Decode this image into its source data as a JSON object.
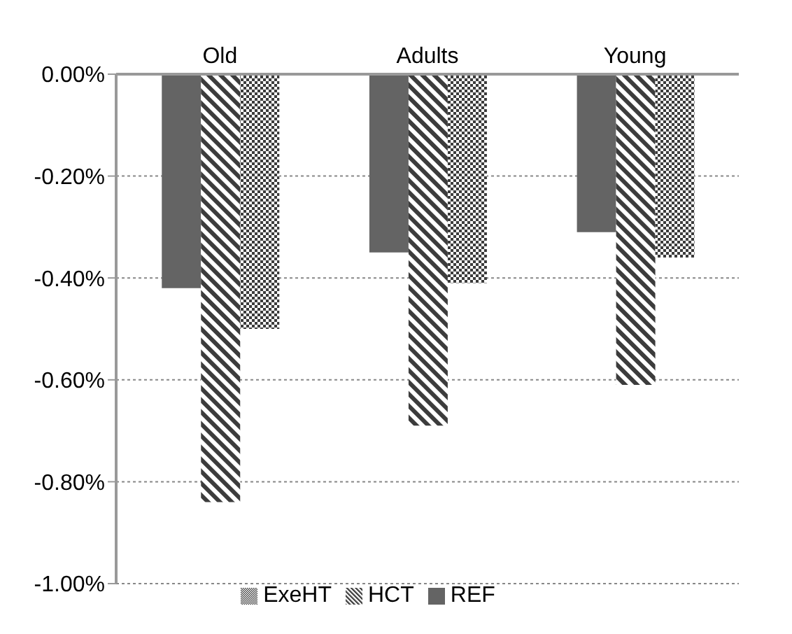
{
  "chart_data": {
    "type": "bar",
    "categories": [
      "Old",
      "Adults",
      "Young"
    ],
    "series": [
      {
        "name": "REF",
        "color": "#646464",
        "values": [
          -0.42,
          -0.35,
          -0.31
        ]
      },
      {
        "name": "HCT",
        "color": "#3c3c3c",
        "values": [
          -0.84,
          -0.69,
          -0.61
        ]
      },
      {
        "name": "ExeHT",
        "color": "#3c3c3c",
        "values": [
          -0.5,
          -0.41,
          -0.36
        ]
      }
    ],
    "ylim": [
      -1.0,
      0
    ],
    "yticks": [
      {
        "value": 0,
        "label": "0.00%"
      },
      {
        "value": -0.2,
        "label": "-0.20%"
      },
      {
        "value": -0.4,
        "label": "-0.40%"
      },
      {
        "value": -0.6,
        "label": "-0.60%"
      },
      {
        "value": -0.8,
        "label": "-0.80%"
      },
      {
        "value": -1.0,
        "label": "-1.00%"
      }
    ],
    "grid": "y",
    "legend": "bottom"
  }
}
